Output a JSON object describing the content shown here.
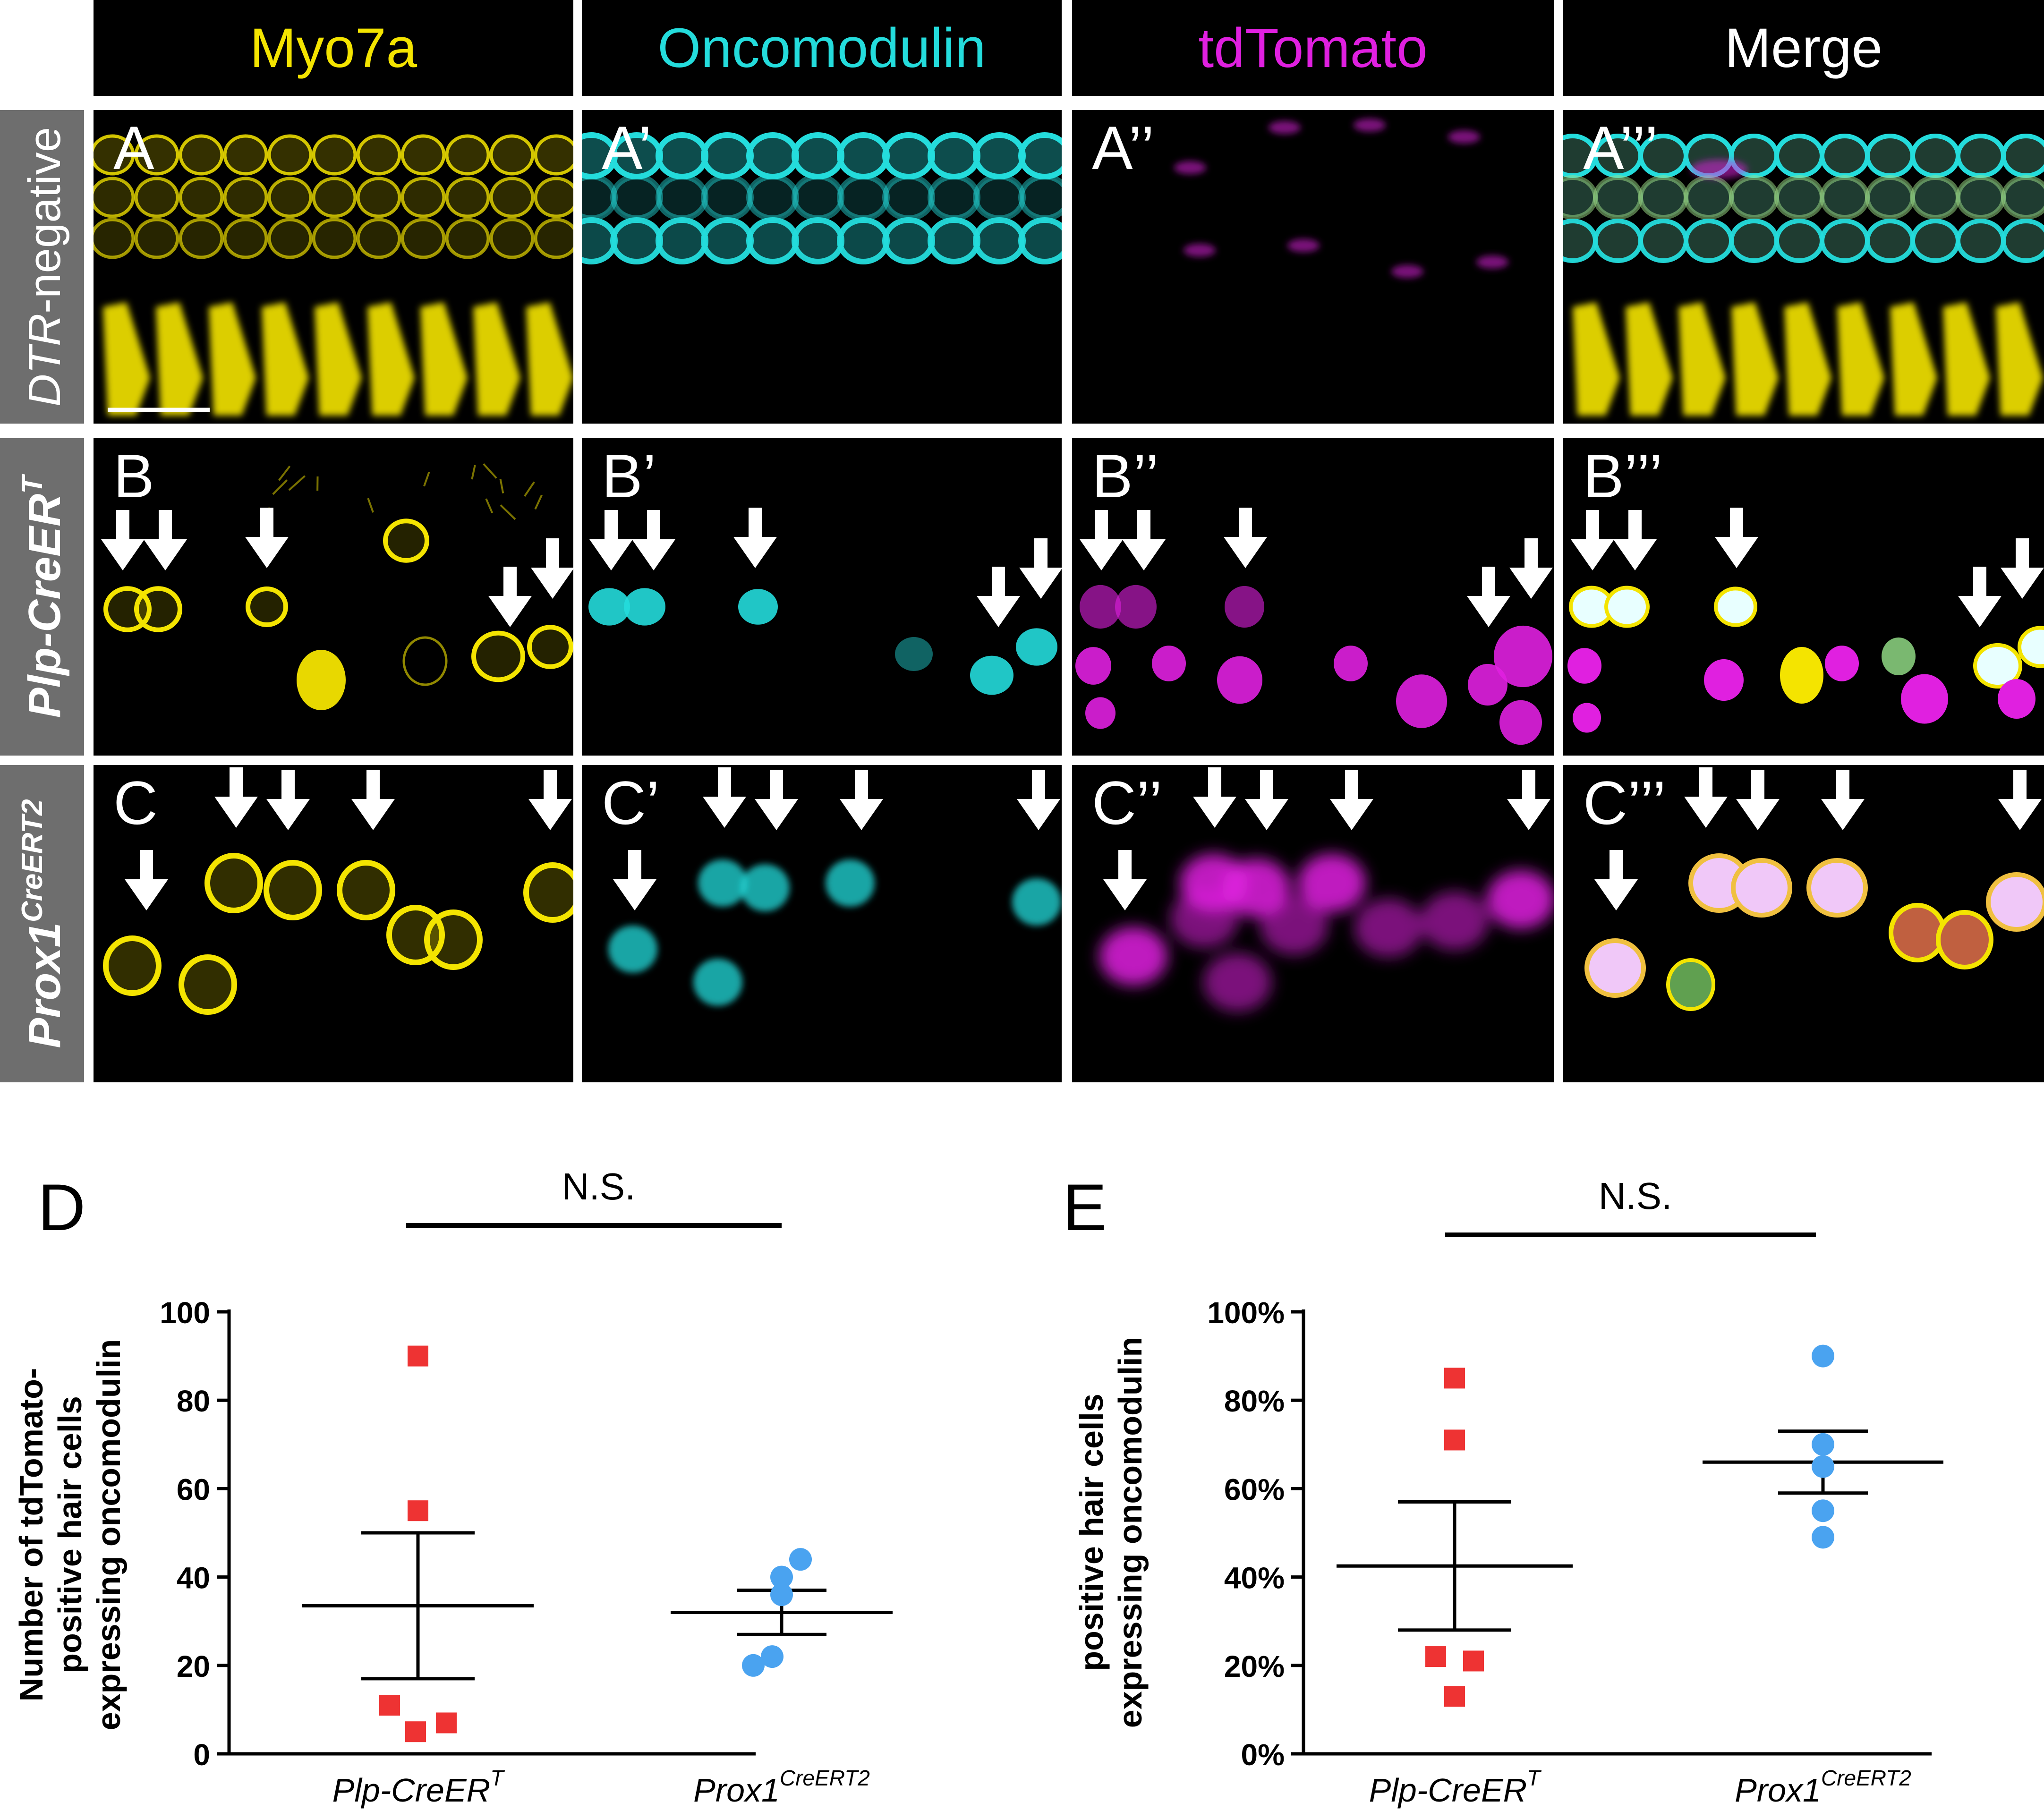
{
  "figure": {
    "columns": [
      {
        "label": "Myo7a",
        "color": "#f4e400"
      },
      {
        "label": "Oncomodulin",
        "color": "#24dcdc"
      },
      {
        "label": "tdTomato",
        "color": "#e020e0"
      },
      {
        "label": "Merge",
        "color": "#ffffff"
      }
    ],
    "rows": [
      {
        "label_plain": "",
        "label_italic": "DTR",
        "label_suffix": "-negative",
        "label_sup": ""
      },
      {
        "label_plain": "",
        "label_italic": "Plp-CreER",
        "label_suffix": "",
        "label_sup": "T"
      },
      {
        "label_plain": "",
        "label_italic": "Prox1",
        "label_suffix": "",
        "label_sup": "CreERT2"
      }
    ],
    "panel_letters": [
      [
        "A",
        "A’",
        "A’’",
        "A’’’"
      ],
      [
        "B",
        "B’",
        "B’’",
        "B’’’"
      ],
      [
        "C",
        "C’",
        "C’’",
        "C’’’"
      ]
    ],
    "colors": {
      "yellow": "#f4e400",
      "cyan": "#24dcdc",
      "magenta": "#e020e0",
      "red_marker": "#ee3333",
      "blue_marker": "#4aa3f0"
    }
  },
  "chart_data": [
    {
      "type": "scatter",
      "panel": "D",
      "significance": "N.S.",
      "ylabel_lines": [
        "Number of tdTomato-",
        "positive hair cells",
        "expressing oncomodulin"
      ],
      "ylim": [
        0,
        100
      ],
      "yticks": [
        0,
        20,
        40,
        60,
        80,
        100
      ],
      "ytick_labels": [
        "0",
        "20",
        "40",
        "60",
        "80",
        "100"
      ],
      "categories": [
        {
          "italic": "Plp-CreER",
          "sup": "T"
        },
        {
          "italic": "Prox1",
          "sup": "CreERT2"
        }
      ],
      "series": [
        {
          "name": "Plp-CreER T",
          "marker": "square",
          "values": [
            90,
            55,
            11,
            5,
            7
          ],
          "mean": 33.5,
          "sem_low": 17,
          "sem_high": 50
        },
        {
          "name": "Prox1 CreERT2",
          "marker": "circle",
          "values": [
            44,
            40,
            36,
            22,
            20
          ],
          "mean": 32,
          "sem_low": 27,
          "sem_high": 37
        }
      ]
    },
    {
      "type": "scatter",
      "panel": "E",
      "significance": "N.S.",
      "ylabel_lines": [
        "positive hair cells",
        "expressing oncomodulin"
      ],
      "ylim": [
        0,
        100
      ],
      "yticks": [
        0,
        20,
        40,
        60,
        80,
        100
      ],
      "ytick_labels": [
        "0%",
        "20%",
        "40%",
        "60%",
        "80%",
        "100%"
      ],
      "categories": [
        {
          "italic": "Plp-CreER",
          "sup": "T"
        },
        {
          "italic": "Prox1",
          "sup": "CreERT2"
        }
      ],
      "series": [
        {
          "name": "Plp-CreER T",
          "marker": "square",
          "values": [
            85,
            71,
            22,
            21,
            13
          ],
          "mean": 42.5,
          "sem_low": 28,
          "sem_high": 57
        },
        {
          "name": "Prox1 CreERT2",
          "marker": "circle",
          "values": [
            90,
            70,
            65,
            55,
            49
          ],
          "mean": 66,
          "sem_low": 59,
          "sem_high": 73
        }
      ]
    }
  ]
}
